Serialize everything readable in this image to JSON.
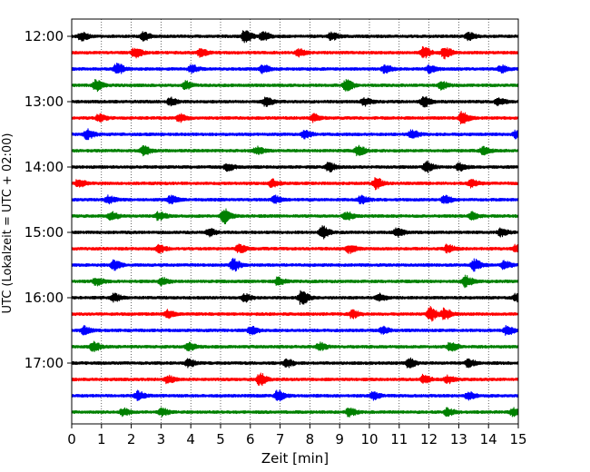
{
  "chart_data": {
    "type": "line",
    "title": "",
    "xlabel": "Zeit  [min]",
    "ylabel": "UTC (Lokalzeit = UTC + 02:00)",
    "xlim": [
      0,
      15
    ],
    "x_ticks": [
      0,
      1,
      2,
      3,
      4,
      5,
      6,
      7,
      8,
      9,
      10,
      11,
      12,
      13,
      14,
      15
    ],
    "x_tick_labels": [
      "0",
      "1",
      "2",
      "3",
      "4",
      "5",
      "6",
      "7",
      "8",
      "9",
      "10",
      "11",
      "12",
      "13",
      "14",
      "15"
    ],
    "y_tick_labels": [
      "12:00",
      "13:00",
      "14:00",
      "15:00",
      "16:00",
      "17:00"
    ],
    "grid": "vertical dotted",
    "traces": [
      {
        "start": "12:00",
        "color": "#000000",
        "events": [
          [
            5.8,
            2.2
          ],
          [
            6.4,
            1.6
          ],
          [
            0.3,
            1.3
          ],
          [
            2.4,
            1.3
          ],
          [
            8.7,
            1.2
          ],
          [
            13.3,
            1.2
          ]
        ]
      },
      {
        "start": "12:15",
        "color": "#ff0000",
        "events": [
          [
            2.1,
            1.6
          ],
          [
            11.8,
            1.8
          ],
          [
            12.5,
            2.0
          ],
          [
            4.3,
            1.2
          ],
          [
            7.6,
            1.2
          ]
        ]
      },
      {
        "start": "12:30",
        "color": "#0000ff",
        "events": [
          [
            1.5,
            1.8
          ],
          [
            6.4,
            1.3
          ],
          [
            4.0,
            1.2
          ],
          [
            10.5,
            1.2
          ],
          [
            12.0,
            1.3
          ],
          [
            14.4,
            1.2
          ]
        ]
      },
      {
        "start": "12:45",
        "color": "#008000",
        "events": [
          [
            0.8,
            1.8
          ],
          [
            3.8,
            1.3
          ],
          [
            9.2,
            1.8
          ],
          [
            12.4,
            1.2
          ]
        ]
      },
      {
        "start": "13:00",
        "color": "#000000",
        "events": [
          [
            3.3,
            1.3
          ],
          [
            6.5,
            1.4
          ],
          [
            9.8,
            1.3
          ],
          [
            11.8,
            1.8
          ],
          [
            14.3,
            1.2
          ]
        ]
      },
      {
        "start": "13:15",
        "color": "#ff0000",
        "events": [
          [
            3.6,
            1.3
          ],
          [
            8.1,
            1.2
          ],
          [
            13.1,
            2.0
          ],
          [
            0.9,
            1.2
          ]
        ]
      },
      {
        "start": "13:30",
        "color": "#0000ff",
        "events": [
          [
            0.5,
            1.6
          ],
          [
            7.8,
            1.3
          ],
          [
            11.4,
            1.5
          ],
          [
            14.9,
            1.2
          ]
        ]
      },
      {
        "start": "13:45",
        "color": "#008000",
        "events": [
          [
            2.4,
            1.6
          ],
          [
            6.2,
            1.2
          ],
          [
            9.6,
            1.6
          ],
          [
            13.8,
            1.2
          ]
        ]
      },
      {
        "start": "14:00",
        "color": "#000000",
        "events": [
          [
            8.6,
            1.5
          ],
          [
            11.9,
            1.8
          ],
          [
            5.2,
            1.2
          ],
          [
            13.0,
            1.2
          ]
        ]
      },
      {
        "start": "14:15",
        "color": "#ff0000",
        "events": [
          [
            10.2,
            1.8
          ],
          [
            0.2,
            1.3
          ],
          [
            6.7,
            1.2
          ],
          [
            13.4,
            1.2
          ]
        ]
      },
      {
        "start": "14:30",
        "color": "#0000ff",
        "events": [
          [
            1.2,
            1.2
          ],
          [
            3.3,
            1.2
          ],
          [
            6.8,
            1.2
          ],
          [
            9.7,
            1.2
          ],
          [
            12.5,
            1.3
          ]
        ]
      },
      {
        "start": "14:45",
        "color": "#008000",
        "events": [
          [
            5.1,
            2.6
          ],
          [
            1.3,
            1.3
          ],
          [
            2.9,
            1.3
          ],
          [
            9.2,
            1.3
          ],
          [
            13.4,
            1.2
          ]
        ]
      },
      {
        "start": "15:00",
        "color": "#000000",
        "events": [
          [
            8.4,
            2.0
          ],
          [
            10.9,
            1.3
          ],
          [
            4.6,
            1.2
          ],
          [
            14.4,
            1.2
          ]
        ]
      },
      {
        "start": "15:15",
        "color": "#ff0000",
        "events": [
          [
            2.9,
            1.2
          ],
          [
            5.6,
            1.3
          ],
          [
            9.3,
            1.3
          ],
          [
            12.6,
            1.2
          ],
          [
            14.9,
            1.2
          ]
        ]
      },
      {
        "start": "15:30",
        "color": "#0000ff",
        "events": [
          [
            1.4,
            1.6
          ],
          [
            5.4,
            2.0
          ],
          [
            13.5,
            1.8
          ],
          [
            14.5,
            1.3
          ]
        ]
      },
      {
        "start": "15:45",
        "color": "#008000",
        "events": [
          [
            0.8,
            1.2
          ],
          [
            3.0,
            1.2
          ],
          [
            6.9,
            1.2
          ],
          [
            13.2,
            1.8
          ]
        ]
      },
      {
        "start": "16:00",
        "color": "#000000",
        "events": [
          [
            7.7,
            2.2
          ],
          [
            5.8,
            1.2
          ],
          [
            1.4,
            1.2
          ],
          [
            10.3,
            1.2
          ],
          [
            14.9,
            1.2
          ]
        ]
      },
      {
        "start": "16:15",
        "color": "#ff0000",
        "events": [
          [
            12.0,
            2.4
          ],
          [
            12.5,
            1.8
          ],
          [
            9.4,
            1.3
          ],
          [
            3.2,
            1.2
          ]
        ]
      },
      {
        "start": "16:30",
        "color": "#0000ff",
        "events": [
          [
            0.4,
            1.3
          ],
          [
            6.0,
            1.2
          ],
          [
            14.6,
            1.5
          ],
          [
            10.4,
            1.2
          ]
        ]
      },
      {
        "start": "16:45",
        "color": "#008000",
        "events": [
          [
            0.7,
            1.6
          ],
          [
            3.9,
            1.2
          ],
          [
            8.3,
            1.3
          ],
          [
            12.7,
            1.5
          ]
        ]
      },
      {
        "start": "17:00",
        "color": "#000000",
        "events": [
          [
            3.9,
            1.3
          ],
          [
            7.2,
            1.3
          ],
          [
            11.3,
            1.5
          ],
          [
            13.3,
            1.2
          ]
        ]
      },
      {
        "start": "17:15",
        "color": "#ff0000",
        "events": [
          [
            6.3,
            2.0
          ],
          [
            3.2,
            1.2
          ],
          [
            11.8,
            1.4
          ],
          [
            12.6,
            1.2
          ]
        ]
      },
      {
        "start": "17:30",
        "color": "#0000ff",
        "events": [
          [
            6.9,
            1.8
          ],
          [
            2.2,
            1.5
          ],
          [
            10.1,
            1.2
          ],
          [
            13.3,
            1.2
          ]
        ]
      },
      {
        "start": "17:45",
        "color": "#008000",
        "events": [
          [
            9.3,
            1.5
          ],
          [
            3.0,
            1.2
          ],
          [
            1.7,
            1.2
          ],
          [
            12.6,
            1.2
          ],
          [
            14.8,
            1.2
          ]
        ]
      }
    ]
  }
}
